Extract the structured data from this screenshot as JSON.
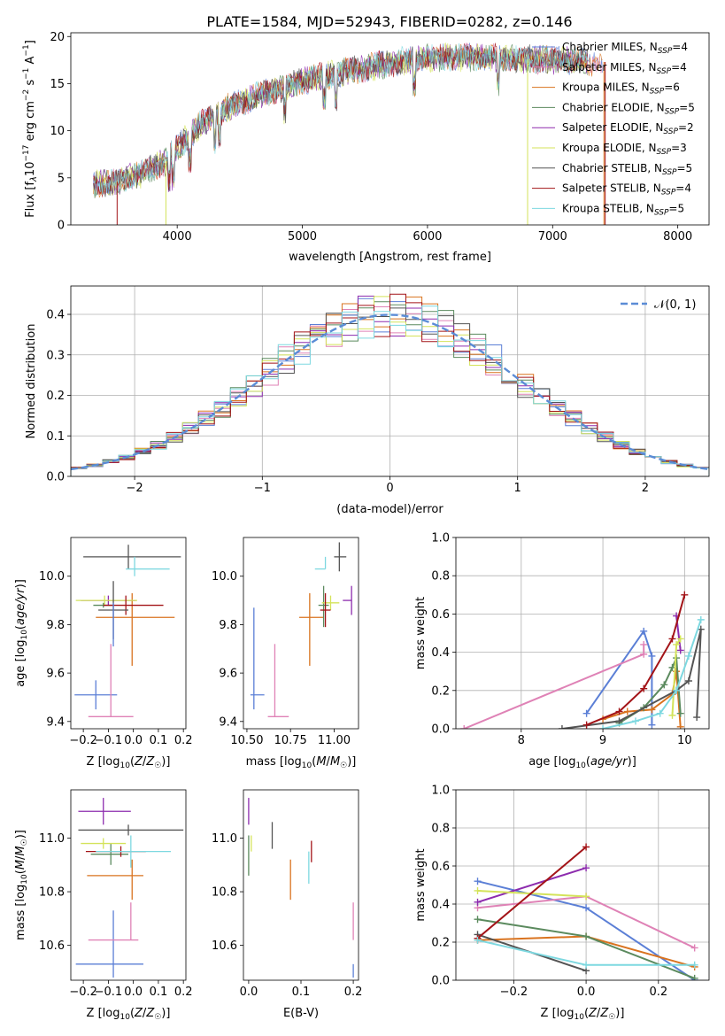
{
  "figure_title": "PLATE=1584, MJD=52943, FIBERID=0282, z=0.146",
  "colors": {
    "Chabrier MILES": "#5b7fd6",
    "Salpeter MILES": "#df82b6",
    "Kroupa MILES": "#d9731f",
    "Chabrier ELODIE": "#5b8a5e",
    "Salpeter ELODIE": "#8d2cae",
    "Kroupa ELODIE": "#d4e35a",
    "Chabrier STELIB": "#545454",
    "Salpeter STELIB": "#a31418",
    "Kroupa STELIB": "#7dd8e0",
    "normal_curve": "#5b8cd6"
  },
  "chart_data": [
    {
      "id": "spectrum",
      "type": "line",
      "xlabel": "wavelength [Angstrom, rest frame]",
      "ylabel": "Flux [f_λ10^-17 erg cm^-2 s^-1 A^-1]",
      "xlim": [
        3150,
        8250
      ],
      "ylim": [
        0,
        20.4
      ],
      "xticks": [
        4000,
        5000,
        6000,
        7000,
        8000
      ],
      "yticks": [
        0,
        5,
        10,
        15,
        20
      ],
      "legend_position": "top-right",
      "series": [
        {
          "name": "Chabrier MILES, N_SSP=4",
          "key": "Chabrier MILES"
        },
        {
          "name": "Salpeter MILES, N_SSP=4",
          "key": "Salpeter MILES"
        },
        {
          "name": "Kroupa MILES, N_SSP=6",
          "key": "Kroupa MILES"
        },
        {
          "name": "Chabrier ELODIE, N_SSP=5",
          "key": "Chabrier ELODIE"
        },
        {
          "name": "Salpeter ELODIE, N_SSP=2",
          "key": "Salpeter ELODIE"
        },
        {
          "name": "Kroupa ELODIE, N_SSP=3",
          "key": "Kroupa ELODIE"
        },
        {
          "name": "Chabrier STELIB, N_SSP=5",
          "key": "Chabrier STELIB"
        },
        {
          "name": "Salpeter STELIB, N_SSP=4",
          "key": "Salpeter STELIB"
        },
        {
          "name": "Kroupa STELIB, N_SSP=5",
          "key": "Kroupa STELIB"
        }
      ],
      "continuum": {
        "wavelength": [
          3330,
          3500,
          3700,
          3900,
          4000,
          4200,
          4400,
          4600,
          4800,
          5000,
          5200,
          5400,
          5600,
          5800,
          6000,
          6200,
          6400,
          6600,
          6800,
          7000,
          7200,
          7400
        ],
        "flux": [
          4.3,
          4.5,
          5.4,
          6.6,
          8.2,
          10.8,
          12.4,
          13.5,
          14.4,
          15.3,
          15.9,
          16.4,
          16.9,
          17.4,
          17.7,
          17.8,
          17.8,
          17.7,
          17.6,
          17.5,
          17.4,
          17.3
        ]
      }
    },
    {
      "id": "residuals",
      "type": "histogram",
      "xlabel": "(data-model)/error",
      "ylabel": "Normed distribution",
      "xlim": [
        -2.5,
        2.5
      ],
      "ylim": [
        0,
        0.47
      ],
      "xticks": [
        -2,
        -1,
        0,
        1,
        2
      ],
      "yticks": [
        0.0,
        0.1,
        0.2,
        0.3,
        0.4
      ],
      "grid": true,
      "legend_position": "top-right",
      "legend_label": "𝒩(0, 1)",
      "bin_edges_range": [
        -2.5,
        2.5
      ],
      "bin_count": 40,
      "reference": "standard normal density"
    },
    {
      "id": "age_vs_Z",
      "type": "scatter",
      "xlabel": "Z [log10(Z/Z☉)]",
      "ylabel": "age [log10(age/yr)]",
      "xlim": [
        -0.25,
        0.21
      ],
      "ylim": [
        9.37,
        10.16
      ],
      "xticks": [
        -0.2,
        -0.1,
        0.0,
        0.1,
        0.2
      ],
      "yticks": [
        9.4,
        9.6,
        9.8,
        10.0
      ],
      "points": [
        {
          "key": "Chabrier MILES",
          "x": -0.15,
          "xerr": [
            0.085,
            0.085
          ],
          "y": 9.51,
          "yerr": [
            0.06,
            0.06
          ]
        },
        {
          "key": "Salpeter MILES",
          "x": -0.09,
          "xerr": [
            0.09,
            0.09
          ],
          "y": 9.42,
          "yerr": [
            0.0,
            0.3
          ]
        },
        {
          "key": "Kroupa MILES",
          "x": -0.005,
          "xerr": [
            0.145,
            0.17
          ],
          "y": 9.83,
          "yerr": [
            0.2,
            0.1
          ]
        },
        {
          "key": "Chabrier ELODIE",
          "x": -0.12,
          "xerr": [
            0.04,
            0.04
          ],
          "y": 9.88,
          "yerr": [
            0.01,
            0.01
          ]
        },
        {
          "key": "Salpeter ELODIE",
          "x": -0.1,
          "xerr": [
            0.11,
            0.11
          ],
          "y": 9.9,
          "yerr": [
            0.02,
            0.02
          ]
        },
        {
          "key": "Kroupa ELODIE",
          "x": -0.115,
          "xerr": [
            0.115,
            0.13
          ],
          "y": 9.9,
          "yerr": [
            0.02,
            0.02
          ]
        },
        {
          "key": "Chabrier STELIB",
          "x": -0.02,
          "xerr": [
            0.18,
            0.21
          ],
          "y": 10.08,
          "yerr": [
            0.05,
            0.05
          ]
        },
        {
          "key": "Salpeter STELIB",
          "x": -0.03,
          "xerr": [
            0.09,
            0.15
          ],
          "y": 9.88,
          "yerr": [
            0.04,
            0.04
          ]
        },
        {
          "key": "Kroupa STELIB",
          "x": 0.005,
          "xerr": [
            0.035,
            0.14
          ],
          "y": 10.03,
          "yerr": [
            0.03,
            0.05
          ]
        },
        {
          "key": "Chabrier STELIB",
          "x": -0.08,
          "xerr": [
            0.06,
            0.06
          ],
          "y": 9.86,
          "yerr": [
            0.12,
            0.12
          ]
        },
        {
          "key": "Chabrier MILES",
          "x": -0.08,
          "xerr": [
            0.0,
            0.0
          ],
          "y": 9.8,
          "yerr": [
            0.09,
            0.09
          ]
        }
      ]
    },
    {
      "id": "age_vs_mass",
      "type": "scatter",
      "xlabel": "mass [log10(M/M☉)]",
      "ylabel": "",
      "xlim": [
        10.48,
        11.14
      ],
      "ylim": [
        9.37,
        10.16
      ],
      "xticks": [
        10.5,
        10.75,
        11.0
      ],
      "yticks": [
        9.4,
        9.6,
        9.8,
        10.0
      ],
      "points": [
        {
          "key": "Chabrier MILES",
          "x": 10.54,
          "xerr": [
            0.02,
            0.06
          ],
          "y": 9.51,
          "yerr": [
            0.06,
            0.36
          ]
        },
        {
          "key": "Salpeter MILES",
          "x": 10.66,
          "xerr": [
            0.04,
            0.08
          ],
          "y": 9.42,
          "yerr": [
            0.0,
            0.3
          ]
        },
        {
          "key": "Kroupa MILES",
          "x": 10.86,
          "xerr": [
            0.06,
            0.08
          ],
          "y": 9.83,
          "yerr": [
            0.2,
            0.1
          ]
        },
        {
          "key": "Chabrier ELODIE",
          "x": 10.94,
          "xerr": [
            0.03,
            0.03
          ],
          "y": 9.88,
          "yerr": [
            0.09,
            0.08
          ]
        },
        {
          "key": "Salpeter ELODIE",
          "x": 11.1,
          "xerr": [
            0.05,
            0.0
          ],
          "y": 9.9,
          "yerr": [
            0.06,
            0.06
          ]
        },
        {
          "key": "Kroupa ELODIE",
          "x": 10.98,
          "xerr": [
            0.05,
            0.05
          ],
          "y": 9.89,
          "yerr": [
            0.03,
            0.03
          ]
        },
        {
          "key": "Chabrier STELIB",
          "x": 11.03,
          "xerr": [
            0.03,
            0.04
          ],
          "y": 10.08,
          "yerr": [
            0.06,
            0.06
          ]
        },
        {
          "key": "Salpeter STELIB",
          "x": 10.95,
          "xerr": [
            0.03,
            0.03
          ],
          "y": 9.86,
          "yerr": [
            0.07,
            0.07
          ]
        },
        {
          "key": "Kroupa STELIB",
          "x": 10.95,
          "xerr": [
            0.06,
            0.0
          ],
          "y": 10.03,
          "yerr": [
            0.0,
            0.05
          ]
        }
      ]
    },
    {
      "id": "massweight_vs_age",
      "type": "line",
      "xlabel": "age [log10(age/yr)]",
      "ylabel": "mass weight",
      "xlim": [
        7.2,
        10.3
      ],
      "ylim": [
        0,
        1.0
      ],
      "xticks": [
        8,
        9,
        10
      ],
      "yticks": [
        0.0,
        0.2,
        0.4,
        0.6,
        0.8,
        1.0
      ],
      "grid": true,
      "series": [
        {
          "key": "Chabrier MILES",
          "x": [
            8.8,
            9.5,
            9.6,
            9.6
          ],
          "y": [
            0.08,
            0.51,
            0.38,
            0.02
          ]
        },
        {
          "key": "Salpeter MILES",
          "x": [
            7.3,
            9.5,
            9.5
          ],
          "y": [
            0.0,
            0.39,
            0.44
          ]
        },
        {
          "key": "Kroupa MILES",
          "x": [
            9.0,
            9.3,
            9.6,
            9.85,
            9.9,
            9.95
          ],
          "y": [
            0.05,
            0.09,
            0.1,
            0.18,
            0.3,
            0.01
          ]
        },
        {
          "key": "Chabrier ELODIE",
          "x": [
            9.2,
            9.5,
            9.75,
            9.85,
            9.9,
            9.95
          ],
          "y": [
            0.03,
            0.11,
            0.23,
            0.32,
            0.37,
            0.08
          ]
        },
        {
          "key": "Salpeter ELODIE",
          "x": [
            9.9,
            9.95
          ],
          "y": [
            0.59,
            0.41
          ]
        },
        {
          "key": "Kroupa ELODIE",
          "x": [
            9.85,
            9.9,
            9.95
          ],
          "y": [
            0.07,
            0.44,
            0.47
          ]
        },
        {
          "key": "Chabrier STELIB",
          "x": [
            8.5,
            9.2,
            9.9,
            10.05,
            10.2,
            10.15
          ],
          "y": [
            0.0,
            0.04,
            0.2,
            0.25,
            0.52,
            0.06
          ]
        },
        {
          "key": "Salpeter STELIB",
          "x": [
            8.8,
            9.2,
            9.5,
            9.85,
            10.0
          ],
          "y": [
            0.02,
            0.09,
            0.21,
            0.47,
            0.7
          ]
        },
        {
          "key": "Kroupa STELIB",
          "x": [
            9.0,
            9.4,
            9.7,
            9.9,
            10.05,
            10.2
          ],
          "y": [
            0.0,
            0.04,
            0.08,
            0.2,
            0.38,
            0.57
          ]
        }
      ]
    },
    {
      "id": "mass_vs_Z",
      "type": "scatter",
      "xlabel": "Z [log10(Z/Z☉)]",
      "ylabel": "mass [log10(M/M☉)]",
      "xlim": [
        -0.25,
        0.21
      ],
      "ylim": [
        10.47,
        11.18
      ],
      "xticks": [
        -0.2,
        -0.1,
        0.0,
        0.1,
        0.2
      ],
      "yticks": [
        10.6,
        10.8,
        11.0
      ],
      "points": [
        {
          "key": "Chabrier MILES",
          "x": -0.08,
          "xerr": [
            0.15,
            0.12
          ],
          "y": 10.53,
          "yerr": [
            0.05,
            0.2
          ]
        },
        {
          "key": "Salpeter MILES",
          "x": -0.01,
          "xerr": [
            0.17,
            0.03
          ],
          "y": 10.62,
          "yerr": [
            0.0,
            0.14
          ]
        },
        {
          "key": "Kroupa MILES",
          "x": -0.005,
          "xerr": [
            0.18,
            0.045
          ],
          "y": 10.86,
          "yerr": [
            0.09,
            0.06
          ]
        },
        {
          "key": "Chabrier ELODIE",
          "x": -0.09,
          "xerr": [
            0.08,
            0.07
          ],
          "y": 10.94,
          "yerr": [
            0.04,
            0.04
          ]
        },
        {
          "key": "Salpeter ELODIE",
          "x": -0.12,
          "xerr": [
            0.1,
            0.11
          ],
          "y": 11.1,
          "yerr": [
            0.05,
            0.05
          ]
        },
        {
          "key": "Kroupa ELODIE",
          "x": -0.12,
          "xerr": [
            0.09,
            0.09
          ],
          "y": 10.98,
          "yerr": [
            0.02,
            0.02
          ]
        },
        {
          "key": "Chabrier STELIB",
          "x": -0.02,
          "xerr": [
            0.2,
            0.22
          ],
          "y": 11.03,
          "yerr": [
            0.02,
            0.02
          ]
        },
        {
          "key": "Salpeter STELIB",
          "x": -0.05,
          "xerr": [
            0.14,
            0.1
          ],
          "y": 10.95,
          "yerr": [
            0.02,
            0.02
          ]
        },
        {
          "key": "Kroupa STELIB",
          "x": -0.01,
          "xerr": [
            0.14,
            0.16
          ],
          "y": 10.95,
          "yerr": [
            0.06,
            0.06
          ]
        }
      ]
    },
    {
      "id": "mass_vs_EBV",
      "type": "scatter",
      "xlabel": "E(B-V)",
      "ylabel": "",
      "xlim": [
        -0.01,
        0.21
      ],
      "ylim": [
        10.47,
        11.18
      ],
      "xticks": [
        0.0,
        0.1,
        0.2
      ],
      "yticks": [
        10.6,
        10.8,
        11.0
      ],
      "points": [
        {
          "key": "Chabrier MILES",
          "x": 0.2,
          "xerr": [
            0,
            0
          ],
          "y": 10.53,
          "yerr": [
            0.05,
            0.0
          ]
        },
        {
          "key": "Salpeter MILES",
          "x": 0.2,
          "xerr": [
            0,
            0
          ],
          "y": 10.62,
          "yerr": [
            0.0,
            0.14
          ]
        },
        {
          "key": "Kroupa MILES",
          "x": 0.08,
          "xerr": [
            0,
            0
          ],
          "y": 10.86,
          "yerr": [
            0.09,
            0.06
          ]
        },
        {
          "key": "Chabrier ELODIE",
          "x": 0.0,
          "xerr": [
            0,
            0
          ],
          "y": 10.94,
          "yerr": [
            0.08,
            0.07
          ]
        },
        {
          "key": "Salpeter ELODIE",
          "x": 0.0,
          "xerr": [
            0,
            0
          ],
          "y": 11.1,
          "yerr": [
            0.05,
            0.05
          ]
        },
        {
          "key": "Kroupa ELODIE",
          "x": 0.005,
          "xerr": [
            0,
            0
          ],
          "y": 10.98,
          "yerr": [
            0.03,
            0.03
          ]
        },
        {
          "key": "Chabrier STELIB",
          "x": 0.045,
          "xerr": [
            0,
            0
          ],
          "y": 11.03,
          "yerr": [
            0.07,
            0.03
          ]
        },
        {
          "key": "Salpeter STELIB",
          "x": 0.12,
          "xerr": [
            0,
            0
          ],
          "y": 10.95,
          "yerr": [
            0.04,
            0.04
          ]
        },
        {
          "key": "Kroupa STELIB",
          "x": 0.115,
          "xerr": [
            0,
            0
          ],
          "y": 10.95,
          "yerr": [
            0.12,
            0.0
          ]
        }
      ]
    },
    {
      "id": "massweight_vs_Z",
      "type": "line",
      "xlabel": "Z [log10(Z/Z☉)]",
      "ylabel": "mass weight",
      "xlim": [
        -0.36,
        0.34
      ],
      "ylim": [
        0,
        1.0
      ],
      "xticks": [
        -0.2,
        0.0,
        0.2
      ],
      "yticks": [
        0.0,
        0.2,
        0.4,
        0.6,
        0.8,
        1.0
      ],
      "grid": true,
      "series": [
        {
          "key": "Chabrier MILES",
          "x": [
            -0.3,
            0.0,
            0.3
          ],
          "y": [
            0.52,
            0.38,
            0.0
          ]
        },
        {
          "key": "Salpeter MILES",
          "x": [
            -0.3,
            0.0,
            0.3
          ],
          "y": [
            0.38,
            0.44,
            0.17
          ]
        },
        {
          "key": "Kroupa MILES",
          "x": [
            -0.3,
            0.0,
            0.3
          ],
          "y": [
            0.21,
            0.23,
            0.07
          ]
        },
        {
          "key": "Chabrier ELODIE",
          "x": [
            -0.3,
            0.0,
            0.3
          ],
          "y": [
            0.32,
            0.23,
            0.01
          ]
        },
        {
          "key": "Salpeter ELODIE",
          "x": [
            -0.3,
            0.0
          ],
          "y": [
            0.41,
            0.59
          ]
        },
        {
          "key": "Kroupa ELODIE",
          "x": [
            -0.3,
            0.0
          ],
          "y": [
            0.47,
            0.44
          ]
        },
        {
          "key": "Chabrier STELIB",
          "x": [
            -0.3,
            0.0
          ],
          "y": [
            0.24,
            0.05
          ]
        },
        {
          "key": "Salpeter STELIB",
          "x": [
            -0.3,
            0.0
          ],
          "y": [
            0.22,
            0.7
          ]
        },
        {
          "key": "Kroupa STELIB",
          "x": [
            -0.3,
            0.0,
            0.3
          ],
          "y": [
            0.21,
            0.08,
            0.08
          ]
        }
      ]
    }
  ]
}
